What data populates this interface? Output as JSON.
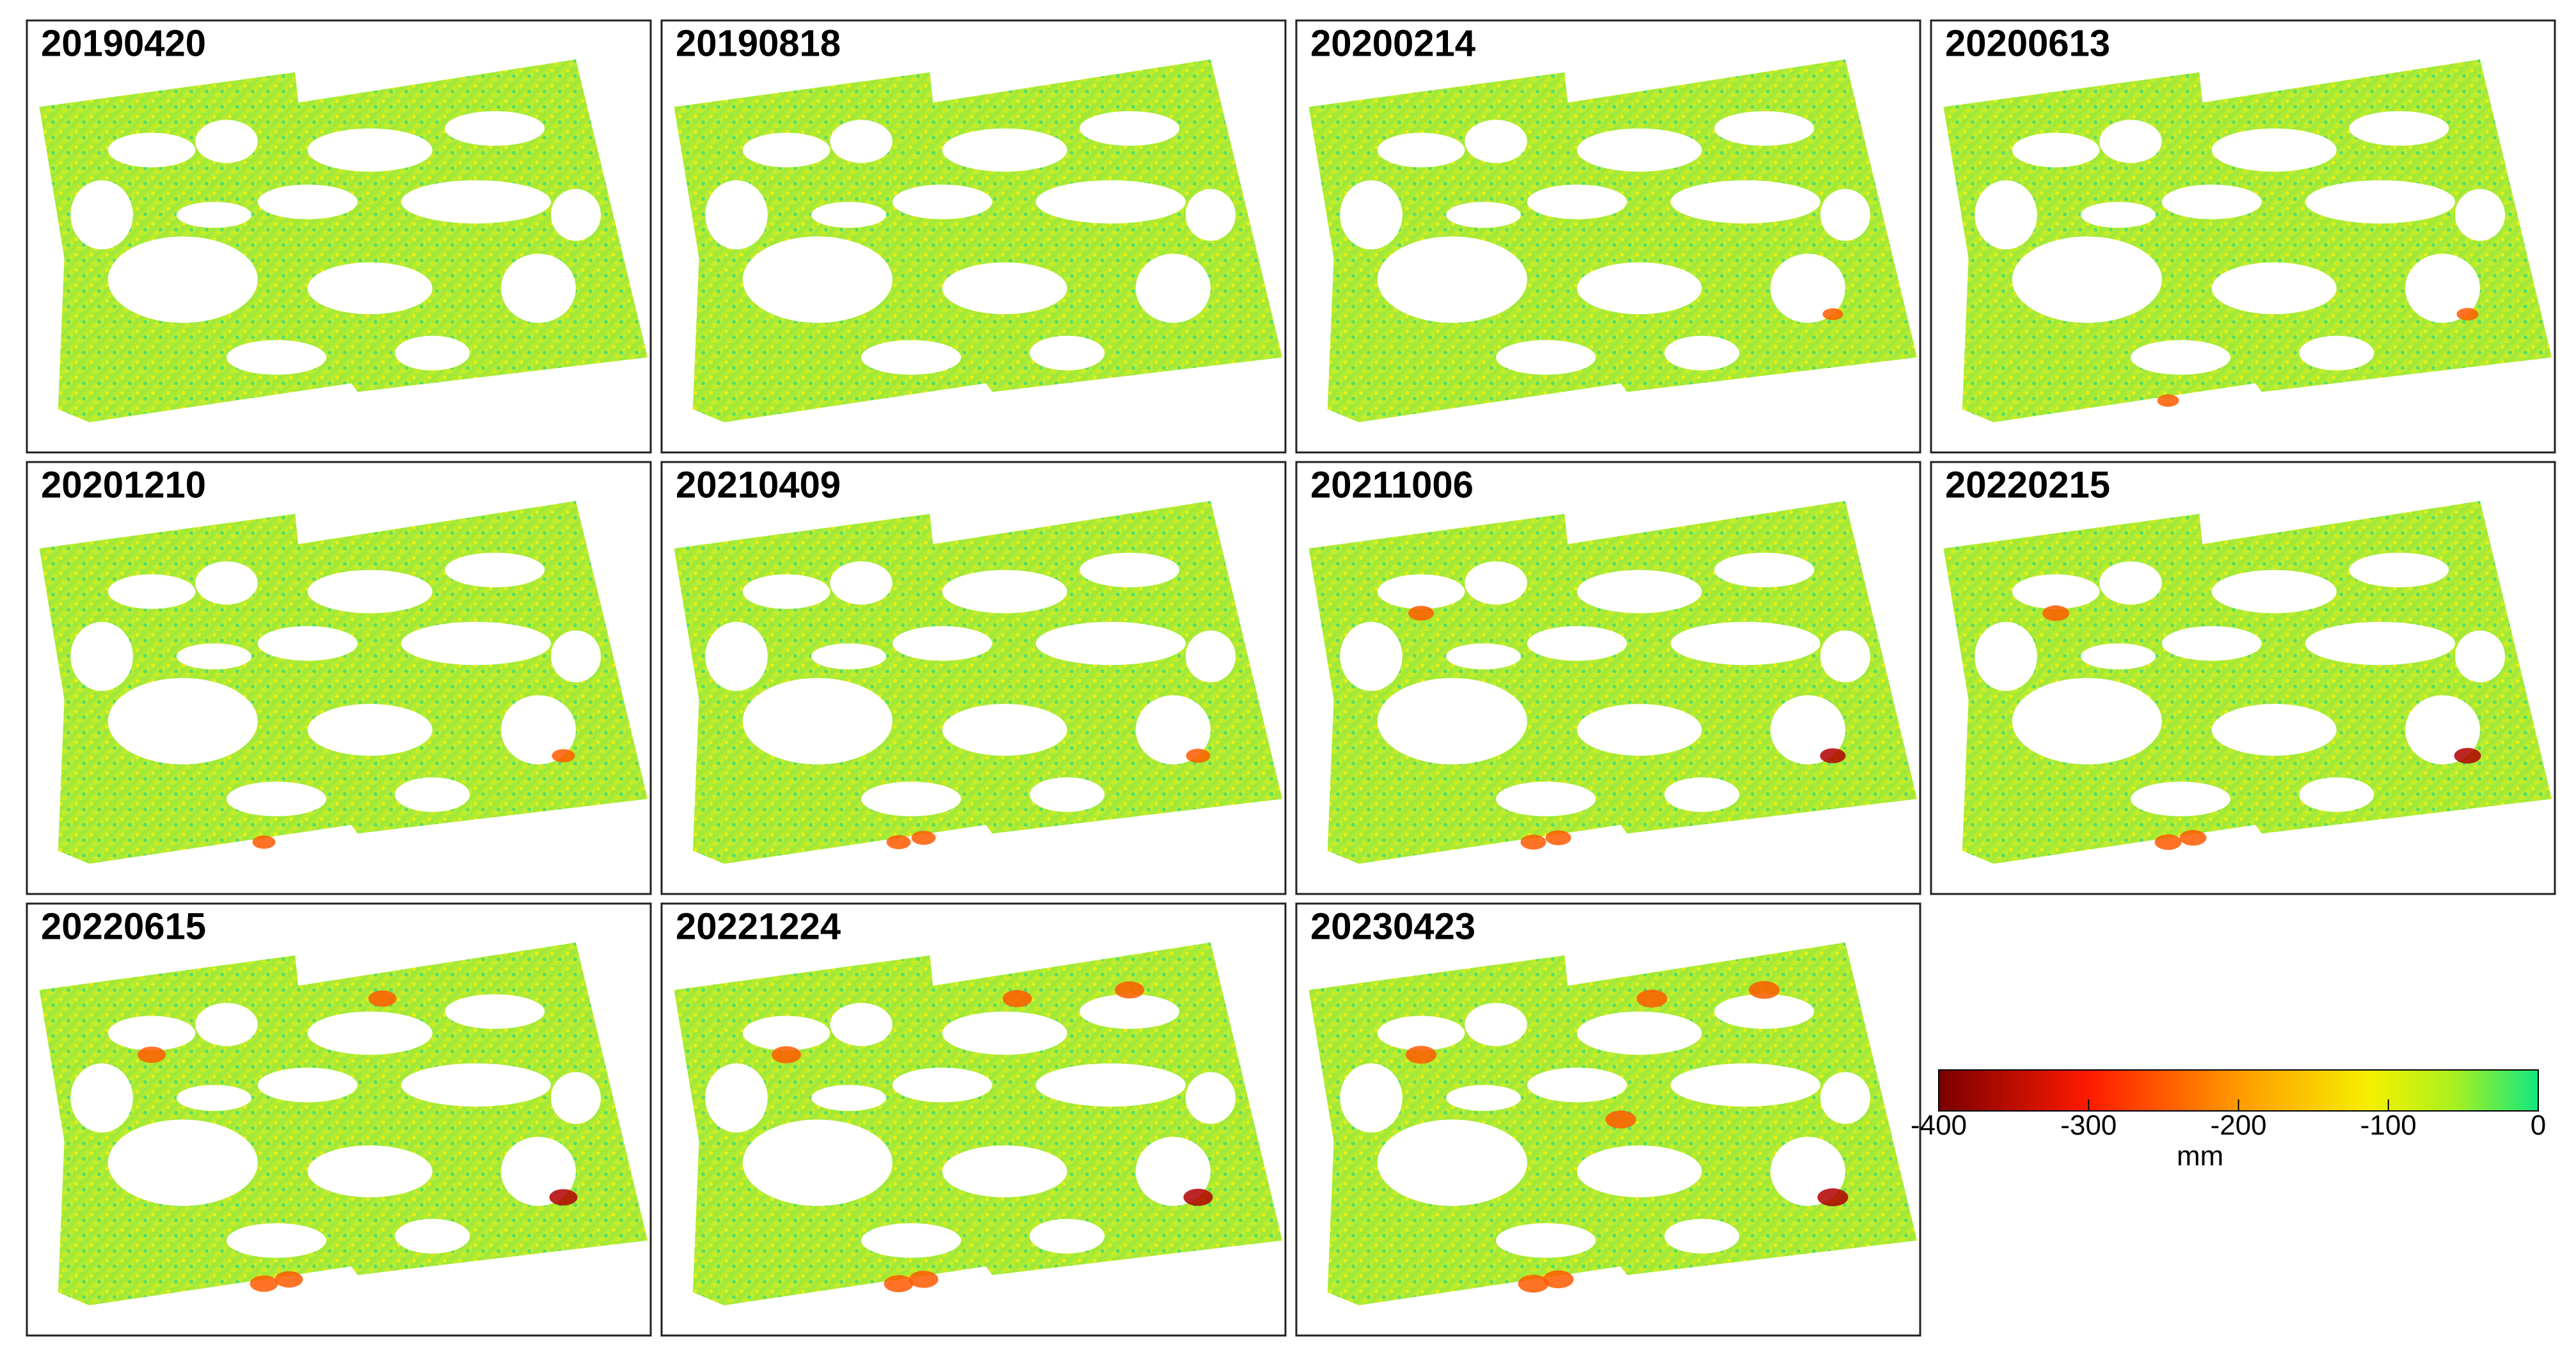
{
  "panels": [
    {
      "label": "20190420"
    },
    {
      "label": "20190818"
    },
    {
      "label": "20200214"
    },
    {
      "label": "20200613"
    },
    {
      "label": "20201210"
    },
    {
      "label": "20210409"
    },
    {
      "label": "20211006"
    },
    {
      "label": "20220215"
    },
    {
      "label": "20220615"
    },
    {
      "label": "20221224"
    },
    {
      "label": "20230423"
    }
  ],
  "colorbar": {
    "label": "mm",
    "lim": [
      -400,
      0
    ],
    "ticks": [
      -400,
      -300,
      -200,
      -100,
      0
    ]
  }
}
